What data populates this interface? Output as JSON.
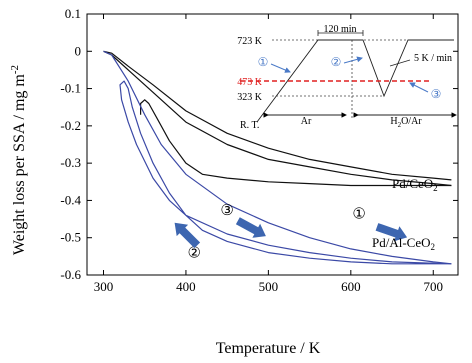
{
  "chart_data": {
    "type": "line",
    "xlabel": "Temperature / K",
    "ylabel": "Weight loss per SSA / mg m",
    "ylabel_sup": "-2",
    "xlim": [
      280,
      730
    ],
    "ylim": [
      -0.6,
      0.1
    ],
    "x_ticks": [
      "300",
      "400",
      "500",
      "600",
      "700"
    ],
    "y_ticks": [
      "0.1",
      "0",
      "-0.1",
      "-0.2",
      "-0.3",
      "-0.4",
      "-0.5",
      "-0.6"
    ],
    "grid": false,
    "series": [
      {
        "name": "Pd/CeO2",
        "color": "#111111",
        "paths": [
          [
            [
              300,
              0
            ],
            [
              310,
              -0.005
            ],
            [
              330,
              -0.04
            ],
            [
              360,
              -0.09
            ],
            [
              400,
              -0.16
            ],
            [
              450,
              -0.22
            ],
            [
              500,
              -0.26
            ],
            [
              550,
              -0.29
            ],
            [
              600,
              -0.31
            ],
            [
              650,
              -0.33
            ],
            [
              700,
              -0.34
            ],
            [
              722,
              -0.345
            ]
          ],
          [
            [
              300,
              0
            ],
            [
              310,
              -0.01
            ],
            [
              330,
              -0.05
            ],
            [
              360,
              -0.11
            ],
            [
              400,
              -0.19
            ],
            [
              450,
              -0.25
            ],
            [
              500,
              -0.29
            ],
            [
              550,
              -0.31
            ],
            [
              600,
              -0.33
            ],
            [
              650,
              -0.345
            ],
            [
              700,
              -0.355
            ],
            [
              722,
              -0.36
            ]
          ],
          [
            [
              722,
              -0.36
            ],
            [
              650,
              -0.36
            ],
            [
              600,
              -0.36
            ],
            [
              550,
              -0.355
            ],
            [
              500,
              -0.35
            ],
            [
              450,
              -0.34
            ],
            [
              420,
              -0.33
            ],
            [
              400,
              -0.3
            ],
            [
              380,
              -0.24
            ],
            [
              365,
              -0.18
            ],
            [
              355,
              -0.14
            ],
            [
              350,
              -0.13
            ],
            [
              345,
              -0.14
            ],
            [
              345,
              -0.17
            ]
          ]
        ]
      },
      {
        "name": "Pd/Al-CeO2",
        "color": "#3b49a6",
        "paths": [
          [
            [
              300,
              0
            ],
            [
              310,
              -0.01
            ],
            [
              330,
              -0.08
            ],
            [
              350,
              -0.17
            ],
            [
              370,
              -0.25
            ],
            [
              400,
              -0.33
            ],
            [
              450,
              -0.41
            ],
            [
              500,
              -0.46
            ],
            [
              550,
              -0.5
            ],
            [
              600,
              -0.53
            ],
            [
              650,
              -0.55
            ],
            [
              700,
              -0.565
            ],
            [
              722,
              -0.57
            ]
          ],
          [
            [
              722,
              -0.57
            ],
            [
              650,
              -0.57
            ],
            [
              600,
              -0.565
            ],
            [
              550,
              -0.555
            ],
            [
              500,
              -0.54
            ],
            [
              450,
              -0.51
            ],
            [
              420,
              -0.48
            ],
            [
              400,
              -0.44
            ],
            [
              380,
              -0.38
            ],
            [
              360,
              -0.3
            ],
            [
              345,
              -0.22
            ],
            [
              335,
              -0.15
            ],
            [
              330,
              -0.1
            ],
            [
              325,
              -0.08
            ],
            [
              320,
              -0.09
            ],
            [
              322,
              -0.13
            ],
            [
              330,
              -0.19
            ],
            [
              340,
              -0.25
            ],
            [
              360,
              -0.34
            ],
            [
              380,
              -0.4
            ],
            [
              400,
              -0.44
            ],
            [
              450,
              -0.49
            ],
            [
              500,
              -0.52
            ],
            [
              550,
              -0.54
            ],
            [
              600,
              -0.555
            ],
            [
              650,
              -0.565
            ],
            [
              722,
              -0.57
            ]
          ]
        ]
      }
    ],
    "labels": {
      "pd_ceo2": "Pd/CeO",
      "pd_ceo2_sub": "2",
      "pd_al_ceo2": "Pd/Al-CeO",
      "pd_al_ceo2_sub": "2"
    },
    "step_markers": [
      {
        "label": "①",
        "x": 610,
        "y": -0.435,
        "arrow_x": 650,
        "arrow_y": -0.485
      },
      {
        "label": "②",
        "x": 410,
        "y": -0.54,
        "arrow_x": 400,
        "arrow_y": -0.49
      },
      {
        "label": "③",
        "x": 450,
        "y": -0.425,
        "arrow_x": 480,
        "arrow_y": -0.475
      }
    ],
    "arrow_color": "#3d66b0",
    "inset": {
      "labels": {
        "time": "120 min",
        "t723": "723 K",
        "t473": "473 K",
        "t323": "323 K",
        "rt": "R. T.",
        "rate": "5 K / min",
        "ar": "Ar",
        "h2o": "H",
        "h2o_sub": "2",
        "h2o_rest": "O/Ar",
        "step1": "①",
        "step2": "②",
        "step3": "③"
      },
      "highlight_color": "#e02020",
      "arrow_color": "#4a7ac7"
    }
  }
}
